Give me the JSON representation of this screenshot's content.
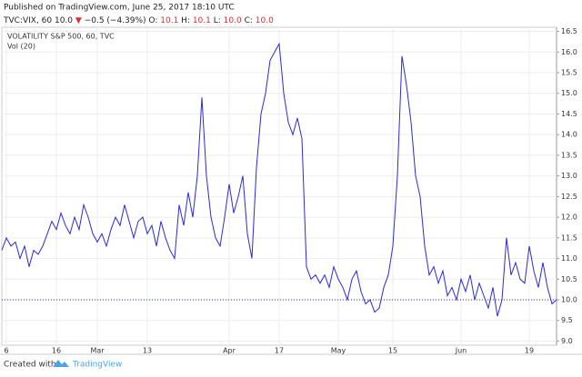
{
  "chart_data": {
    "type": "line",
    "header": {
      "published": "Published on TradingView.com, June 25, 2017 18:10 UTC",
      "symbol": "TVC:VIX, 60",
      "last": "10.0",
      "arrow": "▼",
      "change": "−0.5 (−4.39%)",
      "open_label": "O:",
      "open": "10.1",
      "high_label": "H:",
      "high": "10.1",
      "low_label": "L:",
      "low": "10.0",
      "close_label": "C:",
      "close": "10.0"
    },
    "legend_title": "VOLATILITY S&P 500, 60, TVC",
    "indicator": "Vol (20)",
    "footer": {
      "created": "Created with",
      "brand": "TradingView"
    },
    "color": "#2b2bd6",
    "price_line": 10.0,
    "xlim": [
      0,
      122
    ],
    "xticks": [
      {
        "value": 1,
        "label": "6"
      },
      {
        "value": 12,
        "label": "16"
      },
      {
        "value": 21,
        "label": "Mar"
      },
      {
        "value": 32,
        "label": "13"
      },
      {
        "value": 50,
        "label": "Apr"
      },
      {
        "value": 61,
        "label": "17"
      },
      {
        "value": 74,
        "label": "May"
      },
      {
        "value": 86,
        "label": "15"
      },
      {
        "value": 101,
        "label": "Jun"
      },
      {
        "value": 116,
        "label": "19"
      }
    ],
    "ylim": [
      8.9,
      16.6
    ],
    "yticks": [
      {
        "value": 9,
        "label": "9.0"
      },
      9.5,
      {
        "value": 10,
        "label": "10.0"
      },
      10.5,
      {
        "value": 11,
        "label": "11.0"
      },
      11.5,
      {
        "value": 12,
        "label": "12.0"
      },
      12.5,
      {
        "value": 13,
        "label": "13.0"
      },
      13.5,
      {
        "value": 14,
        "label": "14.0"
      },
      14.5,
      {
        "value": 15,
        "label": "15.0"
      },
      15.5,
      {
        "value": 16,
        "label": "16.0"
      },
      16.5
    ],
    "values": [
      11.2,
      11.5,
      11.3,
      11.4,
      11.0,
      11.3,
      10.8,
      11.2,
      11.1,
      11.3,
      11.6,
      11.9,
      11.7,
      12.1,
      11.8,
      11.6,
      12.0,
      11.7,
      12.3,
      12.0,
      11.6,
      11.4,
      11.6,
      11.3,
      11.7,
      12.0,
      11.8,
      12.3,
      11.9,
      11.5,
      11.9,
      12.0,
      11.6,
      11.8,
      11.3,
      11.9,
      11.5,
      11.2,
      11.0,
      12.3,
      11.8,
      12.6,
      12.0,
      13.0,
      14.9,
      13.0,
      12.0,
      11.5,
      11.3,
      12.0,
      12.8,
      12.1,
      12.5,
      13.0,
      11.6,
      11.0,
      13.2,
      14.5,
      15.0,
      15.8,
      16.0,
      16.2,
      15.0,
      14.3,
      14.0,
      14.4,
      13.9,
      10.8,
      10.5,
      10.6,
      10.4,
      10.6,
      10.3,
      10.8,
      10.5,
      10.3,
      10.0,
      10.5,
      10.7,
      10.2,
      9.9,
      10.0,
      9.7,
      9.8,
      10.3,
      10.6,
      11.3,
      13.0,
      15.9,
      15.2,
      14.3,
      13.0,
      12.5,
      11.3,
      10.6,
      10.8,
      10.4,
      10.7,
      10.1,
      10.3,
      10.0,
      10.5,
      10.2,
      10.6,
      10.0,
      10.4,
      10.1,
      9.8,
      10.3,
      9.6,
      10.0,
      11.5,
      10.6,
      10.9,
      10.5,
      10.4,
      11.3,
      10.7,
      10.3,
      10.9,
      10.3,
      9.9,
      10.0
    ]
  }
}
